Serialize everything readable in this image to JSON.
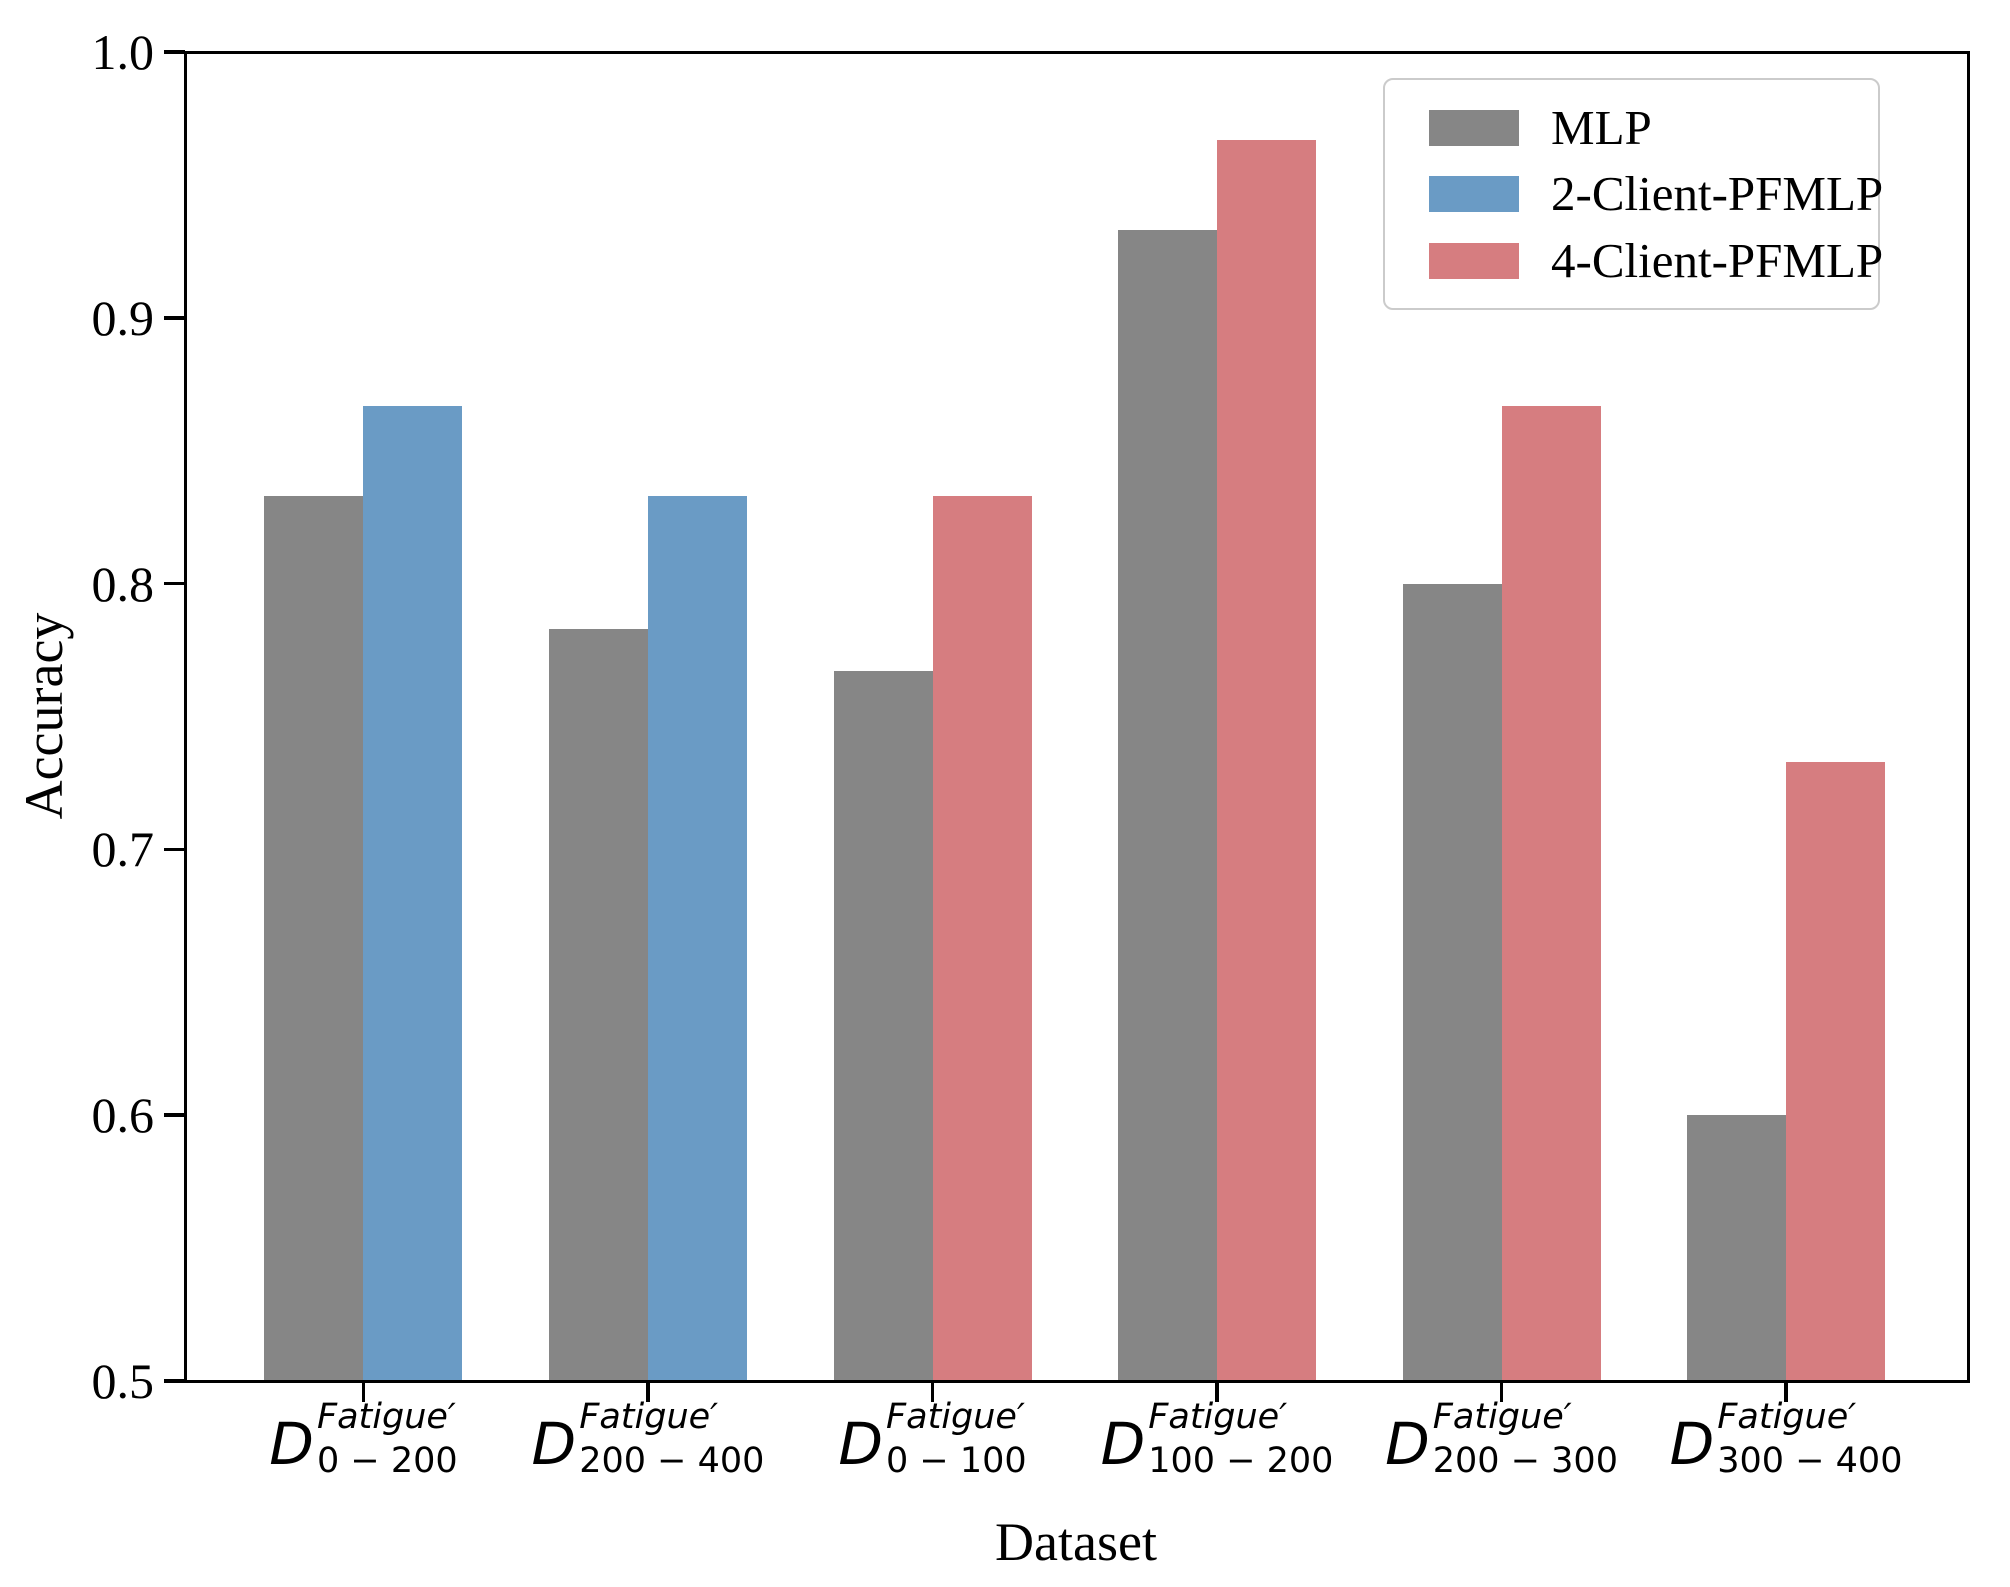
{
  "chart_data": {
    "type": "bar",
    "title": "",
    "xlabel": "Dataset",
    "ylabel": "Accuracy",
    "ylim": [
      0.5,
      1.0
    ],
    "ytick_labels": [
      "1.0",
      "0.9",
      "0.8",
      "0.7",
      "0.6",
      "0.5"
    ],
    "grid": false,
    "legend_position": "upper right",
    "categories": [
      {
        "base": "D",
        "sup": "Fatigue′",
        "sub": "0 − 200"
      },
      {
        "base": "D",
        "sup": "Fatigue′",
        "sub": "200 − 400"
      },
      {
        "base": "D",
        "sup": "Fatigue′",
        "sub": "0 − 100"
      },
      {
        "base": "D",
        "sup": "Fatigue′",
        "sub": "100 − 200"
      },
      {
        "base": "D",
        "sup": "Fatigue′",
        "sub": "200 − 300"
      },
      {
        "base": "D",
        "sup": "Fatigue′",
        "sub": "300 − 400"
      }
    ],
    "series": [
      {
        "name": "MLP",
        "color": "#868686",
        "values": [
          0.833,
          0.783,
          0.767,
          0.933,
          0.8,
          0.6
        ]
      },
      {
        "name": "2-Client-PFMLP",
        "color": "#6a9bc5",
        "values": [
          0.867,
          0.833,
          null,
          null,
          null,
          null
        ]
      },
      {
        "name": "4-Client-PFMLP",
        "color": "#d67d80",
        "values": [
          null,
          null,
          0.833,
          0.967,
          0.867,
          0.733
        ]
      }
    ],
    "axis_color": "#000000",
    "legend_border_color": "#cbcbcb"
  }
}
